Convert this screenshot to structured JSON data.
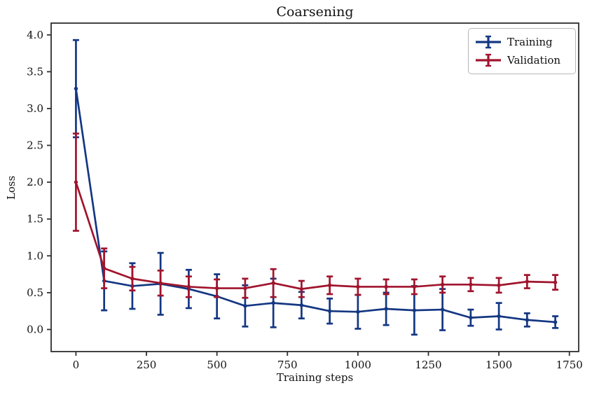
{
  "chart_data": {
    "type": "line",
    "title": "Coarsening",
    "xlabel": "Training steps",
    "ylabel": "Loss",
    "x": [
      0,
      100,
      200,
      300,
      400,
      500,
      600,
      700,
      800,
      900,
      1000,
      1100,
      1200,
      1300,
      1400,
      1500,
      1600,
      1700
    ],
    "series": [
      {
        "name": "Training",
        "color": "#143782",
        "values": [
          3.27,
          0.66,
          0.59,
          0.62,
          0.55,
          0.45,
          0.32,
          0.36,
          0.33,
          0.25,
          0.24,
          0.28,
          0.26,
          0.27,
          0.16,
          0.18,
          0.13,
          0.1
        ],
        "errors": [
          0.66,
          0.4,
          0.31,
          0.42,
          0.26,
          0.3,
          0.28,
          0.33,
          0.18,
          0.17,
          0.23,
          0.22,
          0.33,
          0.28,
          0.11,
          0.18,
          0.09,
          0.08
        ]
      },
      {
        "name": "Validation",
        "color": "#a0142d",
        "values": [
          2.0,
          0.83,
          0.69,
          0.63,
          0.58,
          0.56,
          0.56,
          0.63,
          0.55,
          0.6,
          0.58,
          0.58,
          0.58,
          0.61,
          0.61,
          0.6,
          0.65,
          0.64
        ],
        "errors": [
          0.66,
          0.27,
          0.16,
          0.17,
          0.14,
          0.12,
          0.13,
          0.19,
          0.11,
          0.12,
          0.11,
          0.1,
          0.1,
          0.11,
          0.09,
          0.1,
          0.09,
          0.1
        ]
      }
    ],
    "xticks": [
      0,
      250,
      500,
      750,
      1000,
      1250,
      1500,
      1750
    ],
    "yticks": [
      0.0,
      0.5,
      1.0,
      1.5,
      2.0,
      2.5,
      3.0,
      3.5,
      4.0
    ],
    "xlim": [
      -88,
      1783
    ],
    "ylim": [
      -0.3,
      4.16
    ],
    "grid": false,
    "legend": {
      "position": "upper right",
      "items": [
        "Training",
        "Validation"
      ]
    },
    "axis_color": "#2e2e2e",
    "text_color": "#111111"
  }
}
